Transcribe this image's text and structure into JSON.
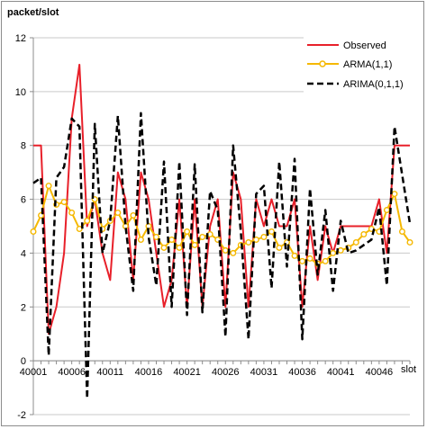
{
  "chart_data": {
    "type": "line",
    "ylabel": "packet/slot",
    "xlabel": "slot",
    "ylim": [
      -2,
      12
    ],
    "yticks": [
      -2,
      0,
      2,
      4,
      6,
      8,
      10,
      12
    ],
    "xlim": [
      40001,
      40050
    ],
    "xtick_labels": [
      "40001",
      "40006",
      "40011",
      "40016",
      "40021",
      "40026",
      "40031",
      "40036",
      "40041",
      "40046"
    ],
    "xticks": [
      40001,
      40006,
      40011,
      40016,
      40021,
      40026,
      40031,
      40036,
      40041,
      40046
    ],
    "grid": "horizontal",
    "legend_position": "top-right",
    "x": [
      40001,
      40002,
      40003,
      40004,
      40005,
      40006,
      40007,
      40008,
      40009,
      40010,
      40011,
      40012,
      40013,
      40014,
      40015,
      40016,
      40017,
      40018,
      40019,
      40020,
      40021,
      40022,
      40023,
      40024,
      40025,
      40026,
      40027,
      40028,
      40029,
      40030,
      40031,
      40032,
      40033,
      40034,
      40035,
      40036,
      40037,
      40038,
      40039,
      40040,
      40041,
      40042,
      40043,
      40044,
      40045,
      40046,
      40047,
      40048,
      40049,
      40050
    ],
    "series": [
      {
        "name": "Observed",
        "color": "#e8202a",
        "style": "solid",
        "values": [
          8,
          8,
          1,
          2,
          4,
          9,
          11,
          5,
          6,
          4,
          3,
          7,
          6,
          3,
          7,
          6,
          4,
          2,
          3,
          6,
          2,
          6,
          2,
          5,
          6,
          2,
          7,
          6,
          2,
          6,
          5,
          6,
          5,
          5,
          6,
          2,
          5,
          3,
          5,
          4,
          5,
          5,
          5,
          5,
          5,
          6,
          4,
          8,
          8,
          8
        ]
      },
      {
        "name": "ARMA(1,1)",
        "color": "#f5b800",
        "style": "solid-markers",
        "values": [
          4.8,
          5.4,
          6.5,
          5.8,
          5.9,
          5.5,
          4.9,
          5.2,
          6.0,
          4.9,
          5.2,
          5.5,
          5.0,
          5.4,
          4.5,
          5.0,
          4.6,
          4.2,
          4.5,
          4.2,
          4.8,
          4.3,
          4.6,
          4.7,
          4.5,
          4.1,
          4.0,
          4.3,
          4.4,
          4.5,
          4.6,
          4.8,
          4.2,
          4.4,
          3.9,
          3.7,
          3.8,
          3.6,
          3.7,
          4.0,
          4.1,
          4.2,
          4.4,
          4.7,
          4.9,
          4.8,
          5.6,
          6.2,
          4.8,
          4.4
        ]
      },
      {
        "name": "ARIMA(0,1,1)",
        "color": "#000000",
        "style": "dashed",
        "values": [
          6.6,
          6.8,
          0.2,
          6.8,
          7.2,
          9.0,
          8.7,
          -1.4,
          8.8,
          4.0,
          5.2,
          9.1,
          5.0,
          2.6,
          9.2,
          4.6,
          2.8,
          7.4,
          2.0,
          7.4,
          1.7,
          7.3,
          1.8,
          6.3,
          5.6,
          0.9,
          8.0,
          4.8,
          0.8,
          6.2,
          6.5,
          2.7,
          7.4,
          3.5,
          7.5,
          0.8,
          6.4,
          3.2,
          5.6,
          2.6,
          5.2,
          4.0,
          4.1,
          4.3,
          4.5,
          5.7,
          2.8,
          8.7,
          6.9,
          5.1
        ]
      }
    ]
  }
}
